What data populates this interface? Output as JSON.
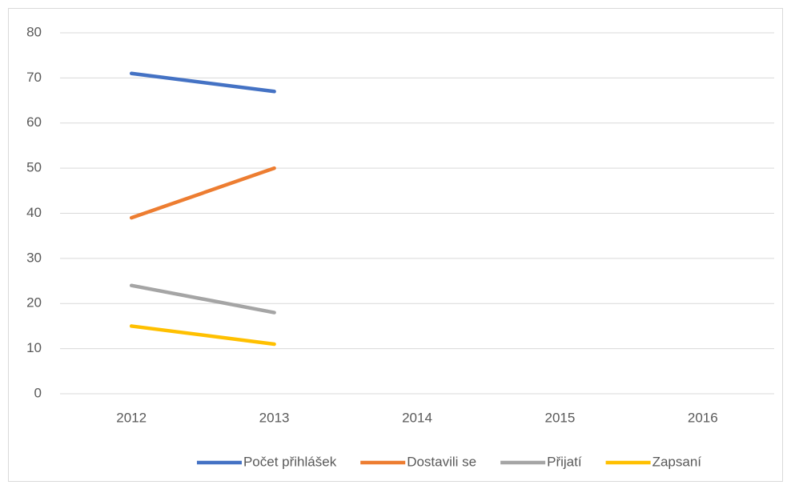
{
  "chart_data": {
    "type": "line",
    "categories": [
      "2012",
      "2013",
      "2014",
      "2015",
      "2016"
    ],
    "series": [
      {
        "name": "Počet přihlášek",
        "color": "#4472c4",
        "values": [
          71,
          67,
          null,
          null,
          null
        ]
      },
      {
        "name": "Dostavili se",
        "color": "#ed7d31",
        "values": [
          39,
          50,
          null,
          null,
          null
        ]
      },
      {
        "name": "Přijatí",
        "color": "#a5a5a5",
        "values": [
          24,
          18,
          null,
          null,
          null
        ]
      },
      {
        "name": "Zapsaní",
        "color": "#ffc000",
        "values": [
          15,
          11,
          null,
          null,
          null
        ]
      }
    ],
    "ylim": [
      0,
      80
    ],
    "yticks": [
      0,
      10,
      20,
      30,
      40,
      50,
      60,
      70,
      80
    ],
    "grid": true,
    "legend": "bottom"
  }
}
